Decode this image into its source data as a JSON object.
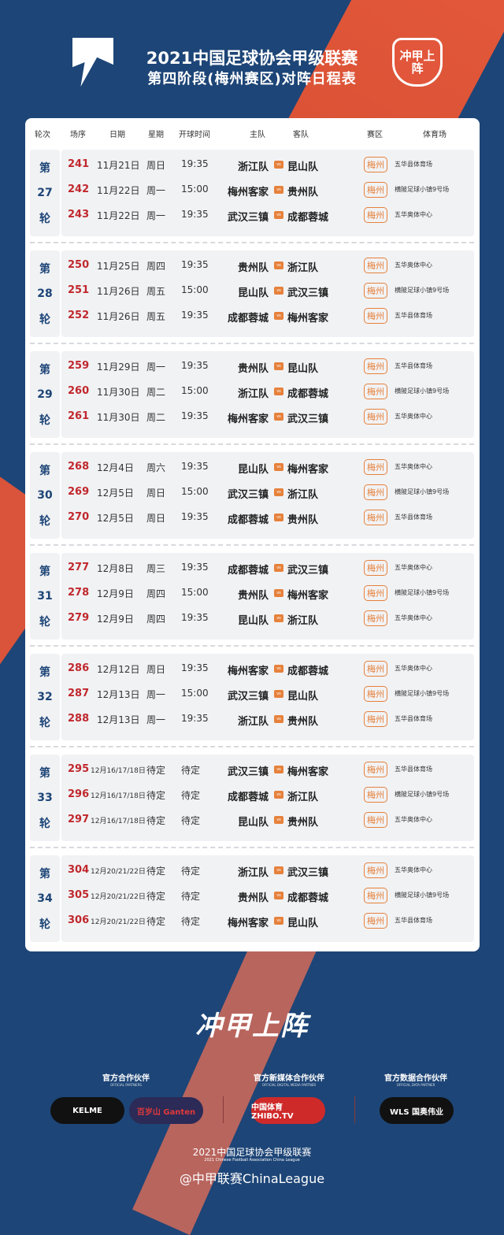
{
  "header": {
    "title": "2021中国足球协会甲级联赛",
    "subtitle": "第四阶段(梅州赛区)对阵日程表",
    "badge": "冲甲上阵"
  },
  "columns": [
    "轮次",
    "场序",
    "日期",
    "星期",
    "开球时间",
    "主队",
    "客队",
    "赛区",
    "体育场"
  ],
  "vs_label": "vs",
  "colors": {
    "background": "#1d4577",
    "accent": "#e2563b",
    "match_no": "#c0282d",
    "zone": "#e6813b"
  },
  "rounds": [
    {
      "pre": "第",
      "num": "27",
      "post": "轮",
      "matches": [
        {
          "no": "241",
          "date": "11月21日",
          "weekday": "周日",
          "time": "19:35",
          "home": "浙江队",
          "away": "昆山队",
          "zone": "梅州",
          "venue": "五华县体育场"
        },
        {
          "no": "242",
          "date": "11月22日",
          "weekday": "周一",
          "time": "15:00",
          "home": "梅州客家",
          "away": "贵州队",
          "zone": "梅州",
          "venue": "横陂足球小镇9号场"
        },
        {
          "no": "243",
          "date": "11月22日",
          "weekday": "周一",
          "time": "19:35",
          "home": "武汉三镇",
          "away": "成都蓉城",
          "zone": "梅州",
          "venue": "五华奥体中心"
        }
      ]
    },
    {
      "pre": "第",
      "num": "28",
      "post": "轮",
      "matches": [
        {
          "no": "250",
          "date": "11月25日",
          "weekday": "周四",
          "time": "19:35",
          "home": "贵州队",
          "away": "浙江队",
          "zone": "梅州",
          "venue": "五华奥体中心"
        },
        {
          "no": "251",
          "date": "11月26日",
          "weekday": "周五",
          "time": "15:00",
          "home": "昆山队",
          "away": "武汉三镇",
          "zone": "梅州",
          "venue": "横陂足球小镇9号场"
        },
        {
          "no": "252",
          "date": "11月26日",
          "weekday": "周五",
          "time": "19:35",
          "home": "成都蓉城",
          "away": "梅州客家",
          "zone": "梅州",
          "venue": "五华县体育场"
        }
      ]
    },
    {
      "pre": "第",
      "num": "29",
      "post": "轮",
      "matches": [
        {
          "no": "259",
          "date": "11月29日",
          "weekday": "周一",
          "time": "19:35",
          "home": "贵州队",
          "away": "昆山队",
          "zone": "梅州",
          "venue": "五华县体育场"
        },
        {
          "no": "260",
          "date": "11月30日",
          "weekday": "周二",
          "time": "15:00",
          "home": "浙江队",
          "away": "成都蓉城",
          "zone": "梅州",
          "venue": "横陂足球小镇9号场"
        },
        {
          "no": "261",
          "date": "11月30日",
          "weekday": "周二",
          "time": "19:35",
          "home": "梅州客家",
          "away": "武汉三镇",
          "zone": "梅州",
          "venue": "五华奥体中心"
        }
      ]
    },
    {
      "pre": "第",
      "num": "30",
      "post": "轮",
      "matches": [
        {
          "no": "268",
          "date": "12月4日",
          "weekday": "周六",
          "time": "19:35",
          "home": "昆山队",
          "away": "梅州客家",
          "zone": "梅州",
          "venue": "五华奥体中心"
        },
        {
          "no": "269",
          "date": "12月5日",
          "weekday": "周日",
          "time": "15:00",
          "home": "武汉三镇",
          "away": "浙江队",
          "zone": "梅州",
          "venue": "横陂足球小镇9号场"
        },
        {
          "no": "270",
          "date": "12月5日",
          "weekday": "周日",
          "time": "19:35",
          "home": "成都蓉城",
          "away": "贵州队",
          "zone": "梅州",
          "venue": "五华县体育场"
        }
      ]
    },
    {
      "pre": "第",
      "num": "31",
      "post": "轮",
      "matches": [
        {
          "no": "277",
          "date": "12月8日",
          "weekday": "周三",
          "time": "19:35",
          "home": "成都蓉城",
          "away": "武汉三镇",
          "zone": "梅州",
          "venue": "五华奥体中心"
        },
        {
          "no": "278",
          "date": "12月9日",
          "weekday": "周四",
          "time": "15:00",
          "home": "贵州队",
          "away": "梅州客家",
          "zone": "梅州",
          "venue": "横陂足球小镇9号场"
        },
        {
          "no": "279",
          "date": "12月9日",
          "weekday": "周四",
          "time": "19:35",
          "home": "昆山队",
          "away": "浙江队",
          "zone": "梅州",
          "venue": "五华奥体中心"
        }
      ]
    },
    {
      "pre": "第",
      "num": "32",
      "post": "轮",
      "matches": [
        {
          "no": "286",
          "date": "12月12日",
          "weekday": "周日",
          "time": "19:35",
          "home": "梅州客家",
          "away": "成都蓉城",
          "zone": "梅州",
          "venue": "五华奥体中心"
        },
        {
          "no": "287",
          "date": "12月13日",
          "weekday": "周一",
          "time": "15:00",
          "home": "武汉三镇",
          "away": "昆山队",
          "zone": "梅州",
          "venue": "横陂足球小镇9号场"
        },
        {
          "no": "288",
          "date": "12月13日",
          "weekday": "周一",
          "time": "19:35",
          "home": "浙江队",
          "away": "贵州队",
          "zone": "梅州",
          "venue": "五华县体育场"
        }
      ]
    },
    {
      "pre": "第",
      "num": "33",
      "post": "轮",
      "matches": [
        {
          "no": "295",
          "date": "12月16/17/18日",
          "weekday": "待定",
          "time": "待定",
          "home": "武汉三镇",
          "away": "梅州客家",
          "zone": "梅州",
          "venue": "五华县体育场"
        },
        {
          "no": "296",
          "date": "12月16/17/18日",
          "weekday": "待定",
          "time": "待定",
          "home": "成都蓉城",
          "away": "浙江队",
          "zone": "梅州",
          "venue": "横陂足球小镇9号场"
        },
        {
          "no": "297",
          "date": "12月16/17/18日",
          "weekday": "待定",
          "time": "待定",
          "home": "昆山队",
          "away": "贵州队",
          "zone": "梅州",
          "venue": "五华奥体中心"
        }
      ]
    },
    {
      "pre": "第",
      "num": "34",
      "post": "轮",
      "matches": [
        {
          "no": "304",
          "date": "12月20/21/22日",
          "weekday": "待定",
          "time": "待定",
          "home": "浙江队",
          "away": "武汉三镇",
          "zone": "梅州",
          "venue": "五华奥体中心"
        },
        {
          "no": "305",
          "date": "12月20/21/22日",
          "weekday": "待定",
          "time": "待定",
          "home": "贵州队",
          "away": "成都蓉城",
          "zone": "梅州",
          "venue": "横陂足球小镇9号场"
        },
        {
          "no": "306",
          "date": "12月20/21/22日",
          "weekday": "待定",
          "time": "待定",
          "home": "梅州客家",
          "away": "昆山队",
          "zone": "梅州",
          "venue": "五华县体育场"
        }
      ]
    }
  ],
  "slogan": "冲甲上阵",
  "partners": {
    "official": {
      "title": "官方合作伙伴",
      "subtitle": "OFFICIAL PARTNERS",
      "logos": [
        "KELME",
        "百岁山 Ganten"
      ]
    },
    "media": {
      "title": "官方新媒体合作伙伴",
      "subtitle": "OFFICIAL DIGITAL MEDIA PARTNER",
      "logos": [
        "中国体育 ZHIBO.TV"
      ]
    },
    "data": {
      "title": "官方数据合作伙伴",
      "subtitle": "OFFICIAL DATA PARTNER",
      "logos": [
        "WLS 国奥伟业"
      ]
    }
  },
  "footer": {
    "league": "2021中国足球协会甲级联赛",
    "league_en": "2021 Chinese Football Association China League",
    "weibo": "@中甲联赛ChinaLeague"
  }
}
